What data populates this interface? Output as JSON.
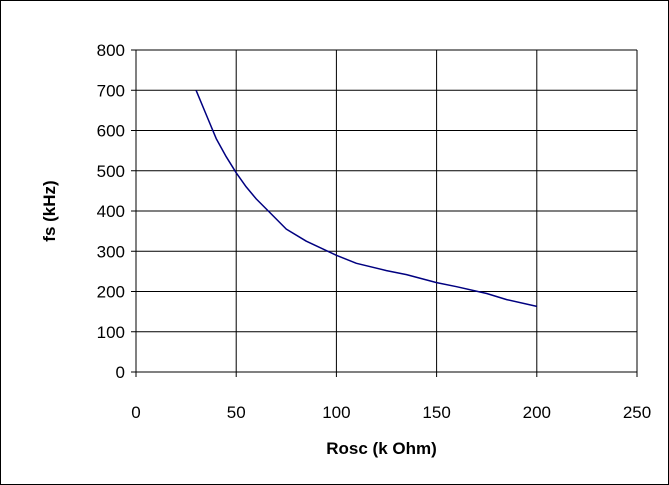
{
  "chart_data": {
    "type": "line",
    "xlabel": "Rosc (k Ohm)",
    "ylabel": "fs (kHz)",
    "xlim": [
      0,
      250
    ],
    "ylim": [
      0,
      800
    ],
    "xticks": [
      0,
      50,
      100,
      150,
      200,
      250
    ],
    "yticks": [
      0,
      100,
      200,
      300,
      400,
      500,
      600,
      700,
      800
    ],
    "grid": true,
    "legend": "none",
    "colors": {
      "line": "#000080",
      "grid": "#000000",
      "axis": "#000000"
    },
    "series": [
      {
        "x": [
          30,
          35,
          40,
          45,
          50,
          55,
          60,
          67,
          75,
          85,
          100,
          110,
          125,
          135,
          150,
          160,
          175,
          185,
          200
        ],
        "y": [
          700,
          640,
          580,
          535,
          495,
          460,
          430,
          395,
          355,
          325,
          290,
          270,
          252,
          242,
          222,
          212,
          195,
          180,
          163
        ]
      }
    ]
  }
}
